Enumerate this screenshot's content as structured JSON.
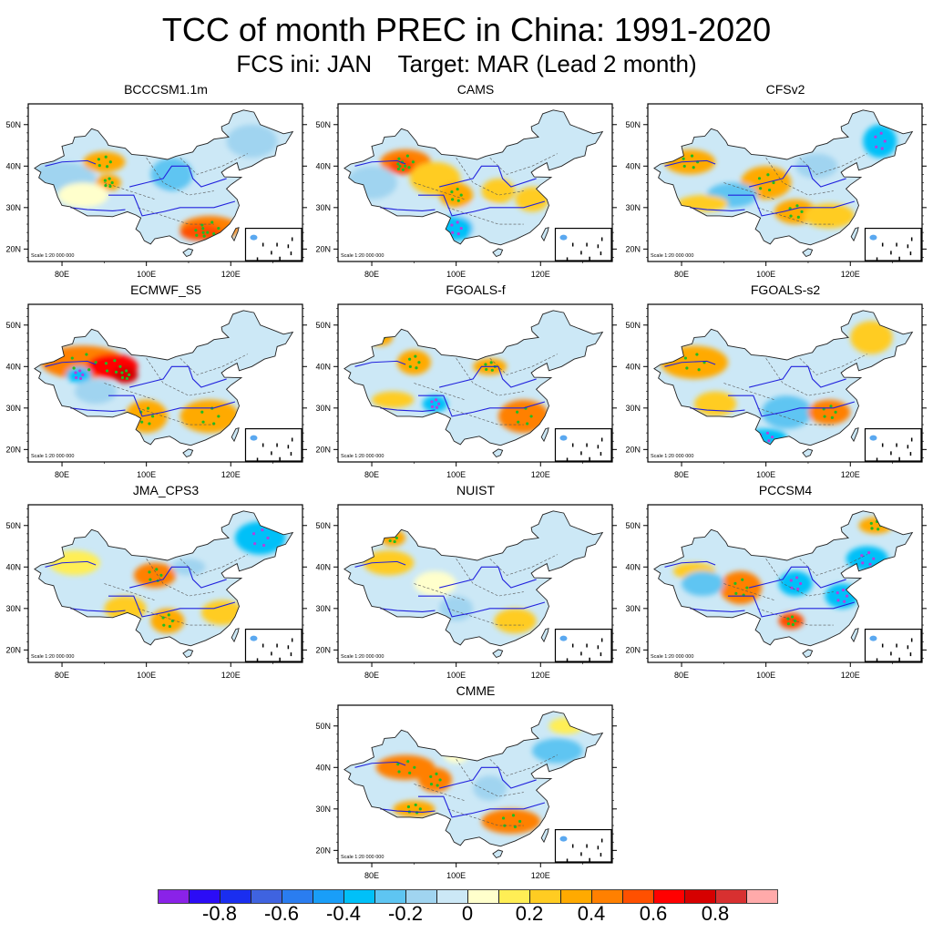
{
  "title": "TCC of month PREC in China: 1991-2020",
  "subtitle": "FCS ini: JAN    Target: MAR (Lead 2 month)",
  "map": {
    "lat_ticks": [
      "50N",
      "40N",
      "30N",
      "20N"
    ],
    "lon_ticks": [
      "80E",
      "100E",
      "120E"
    ],
    "scale_text": "Scale 1:20 000 000"
  },
  "panels": [
    {
      "name": "BCCCSM1.1m",
      "pattern": "south-pos"
    },
    {
      "name": "CAMS",
      "pattern": "west-pos"
    },
    {
      "name": "CFSv2",
      "pattern": "mixed"
    },
    {
      "name": "ECMWF_S5",
      "pattern": "west-strong"
    },
    {
      "name": "FGOALS-f",
      "pattern": "southeast-pos"
    },
    {
      "name": "FGOALS-s2",
      "pattern": "west-se"
    },
    {
      "name": "JMA_CPS3",
      "pattern": "ne-neg"
    },
    {
      "name": "NUIST",
      "pattern": "weak"
    },
    {
      "name": "PCCSM4",
      "pattern": "east-neg"
    },
    {
      "name": "CMME",
      "pattern": "ensemble"
    }
  ],
  "colorbar": {
    "colors": [
      "#8a22e8",
      "#2b0cf6",
      "#1a2ef0",
      "#3f63e0",
      "#2a7df0",
      "#199ef8",
      "#00c0f8",
      "#5ec5f2",
      "#a0d4f0",
      "#cce8f6",
      "#ffffcc",
      "#ffee55",
      "#ffcc22",
      "#ffaa00",
      "#ff8000",
      "#ff5000",
      "#ff0000",
      "#d60000",
      "#d83030",
      "#ffaaaa"
    ],
    "labels": [
      "-0.8",
      "-0.6",
      "-0.4",
      "-0.2",
      "0",
      "0.2",
      "0.4",
      "0.6",
      "0.8"
    ],
    "label_values": [
      -0.8,
      -0.6,
      -0.4,
      -0.2,
      0,
      0.2,
      0.4,
      0.6,
      0.8
    ],
    "range": [
      -1.0,
      1.0
    ]
  }
}
